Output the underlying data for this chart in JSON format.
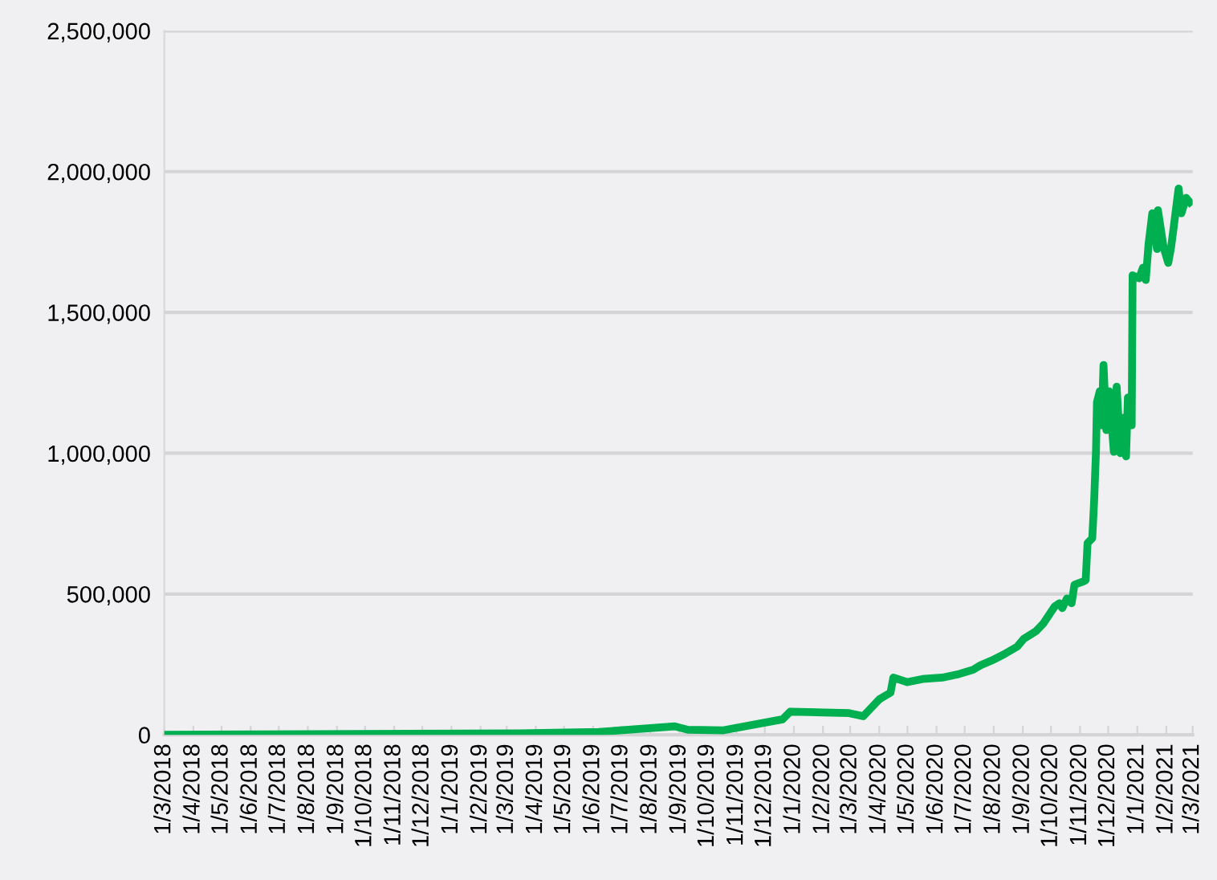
{
  "chart_data": {
    "type": "line",
    "x": [
      "2018-03-01",
      "2019-03-15",
      "2019-06-07",
      "2019-08-27",
      "2019-09-10",
      "2019-10-18",
      "2019-12-20",
      "2019-12-28",
      "2020-02-29",
      "2020-03-15",
      "2020-04-01",
      "2020-04-04",
      "2020-04-13",
      "2020-04-16",
      "2020-05-01",
      "2020-05-17",
      "2020-06-07",
      "2020-06-23",
      "2020-07-10",
      "2020-07-18",
      "2020-07-30",
      "2020-08-12",
      "2020-08-26",
      "2020-09-02",
      "2020-09-15",
      "2020-09-23",
      "2020-10-05",
      "2020-10-10",
      "2020-10-13",
      "2020-10-18",
      "2020-10-23",
      "2020-10-26",
      "2020-11-04",
      "2020-11-07",
      "2020-11-09",
      "2020-11-14",
      "2020-11-16",
      "2020-11-18",
      "2020-11-19",
      "2020-11-22",
      "2020-11-24",
      "2020-11-26",
      "2020-11-29",
      "2020-12-02",
      "2020-12-07",
      "2020-12-10",
      "2020-12-14",
      "2020-12-17",
      "2020-12-20",
      "2020-12-22",
      "2020-12-26",
      "2020-12-27",
      "2021-01-03",
      "2021-01-07",
      "2021-01-10",
      "2021-01-13",
      "2021-01-17",
      "2021-01-22",
      "2021-01-23",
      "2021-01-29",
      "2021-02-03",
      "2021-02-06",
      "2021-02-09",
      "2021-02-14",
      "2021-02-17",
      "2021-02-22",
      "2021-02-26"
    ],
    "series": [
      {
        "color": "#00b050",
        "values": [
          0,
          5000,
          10000,
          30000,
          18000,
          16000,
          55000,
          82000,
          77000,
          66000,
          126000,
          132000,
          150000,
          203000,
          187000,
          198000,
          203000,
          214000,
          231000,
          247000,
          264000,
          286000,
          313000,
          341000,
          368000,
          396000,
          456000,
          467000,
          450000,
          484000,
          467000,
          533000,
          544000,
          549000,
          681000,
          698000,
          830000,
          1011000,
          1181000,
          1220000,
          1099000,
          1313000,
          1082000,
          1220000,
          1005000,
          1236000,
          1000000,
          1126000,
          989000,
          1198000,
          1099000,
          1632000,
          1621000,
          1659000,
          1615000,
          1742000,
          1852000,
          1725000,
          1863000,
          1731000,
          1676000,
          1731000,
          1808000,
          1940000,
          1852000,
          1907000,
          1891000
        ]
      }
    ],
    "xlim": [
      "2018-03-01",
      "2021-03-01"
    ],
    "ylim": [
      0,
      2500000
    ],
    "yticks": [
      0,
      {
        "value": 500000,
        "label": "500,000"
      },
      {
        "value": 1000000,
        "label": "1,000,000"
      },
      {
        "value": 1500000,
        "label": "1,500,000"
      },
      {
        "value": 2000000,
        "label": "2,000,000"
      },
      {
        "value": 2500000,
        "label": "2,500,000"
      }
    ],
    "xticks": [
      {
        "value": "2018-03-01",
        "label": "1/3/2018"
      },
      {
        "value": "2018-04-01",
        "label": "1/4/2018"
      },
      {
        "value": "2018-05-01",
        "label": "1/5/2018"
      },
      {
        "value": "2018-06-01",
        "label": "1/6/2018"
      },
      {
        "value": "2018-07-01",
        "label": "1/7/2018"
      },
      {
        "value": "2018-08-01",
        "label": "1/8/2018"
      },
      {
        "value": "2018-09-01",
        "label": "1/9/2018"
      },
      {
        "value": "2018-10-01",
        "label": "1/10/2018"
      },
      {
        "value": "2018-11-01",
        "label": "1/11/2018"
      },
      {
        "value": "2018-12-01",
        "label": "1/12/2018"
      },
      {
        "value": "2019-01-01",
        "label": "1/1/2019"
      },
      {
        "value": "2019-02-01",
        "label": "1/2/2019"
      },
      {
        "value": "2019-03-01",
        "label": "1/3/2019"
      },
      {
        "value": "2019-04-01",
        "label": "1/4/2019"
      },
      {
        "value": "2019-05-01",
        "label": "1/5/2019"
      },
      {
        "value": "2019-06-01",
        "label": "1/6/2019"
      },
      {
        "value": "2019-07-01",
        "label": "1/7/2019"
      },
      {
        "value": "2019-08-01",
        "label": "1/8/2019"
      },
      {
        "value": "2019-09-01",
        "label": "1/9/2019"
      },
      {
        "value": "2019-10-01",
        "label": "1/10/2019"
      },
      {
        "value": "2019-11-01",
        "label": "1/11/2019"
      },
      {
        "value": "2019-12-01",
        "label": "1/12/2019"
      },
      {
        "value": "2020-01-01",
        "label": "1/1/2020"
      },
      {
        "value": "2020-02-01",
        "label": "1/2/2020"
      },
      {
        "value": "2020-03-01",
        "label": "1/3/2020"
      },
      {
        "value": "2020-04-01",
        "label": "1/4/2020"
      },
      {
        "value": "2020-05-01",
        "label": "1/5/2020"
      },
      {
        "value": "2020-06-01",
        "label": "1/6/2020"
      },
      {
        "value": "2020-07-01",
        "label": "1/7/2020"
      },
      {
        "value": "2020-08-01",
        "label": "1/8/2020"
      },
      {
        "value": "2020-09-01",
        "label": "1/9/2020"
      },
      {
        "value": "2020-10-01",
        "label": "1/10/2020"
      },
      {
        "value": "2020-11-01",
        "label": "1/11/2020"
      },
      {
        "value": "2020-12-01",
        "label": "1/12/2020"
      },
      {
        "value": "2021-01-01",
        "label": "1/1/2021"
      },
      {
        "value": "2021-02-01",
        "label": "1/2/2021"
      },
      {
        "value": "2021-03-01",
        "label": "1/3/2021"
      }
    ],
    "grid": "y",
    "marker": "none",
    "line_style": "solid"
  }
}
